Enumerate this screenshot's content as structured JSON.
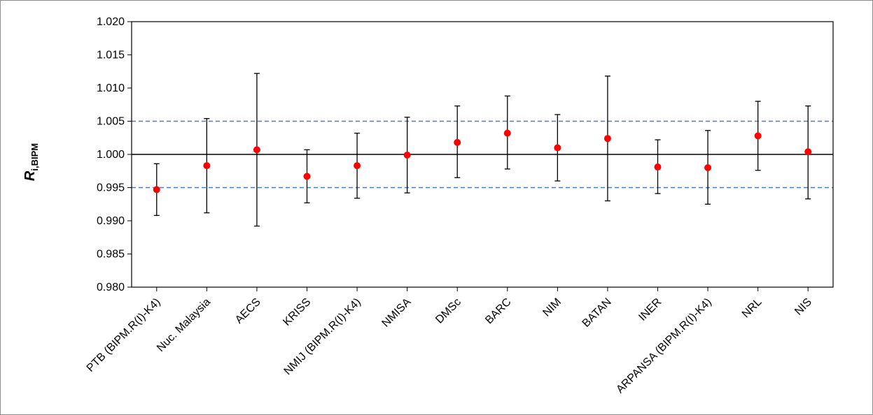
{
  "chart_data": {
    "type": "scatter",
    "ylabel": {
      "main": "R",
      "subscript": "i,BIPM"
    },
    "ylim": [
      0.98,
      1.02
    ],
    "ytick_step": 0.005,
    "ytick_labels": [
      "0.980",
      "0.985",
      "0.990",
      "0.995",
      "1.000",
      "1.005",
      "1.010",
      "1.015",
      "1.020"
    ],
    "reference_line": 1.0,
    "dashed_lines": [
      0.995,
      1.005
    ],
    "marker_color": "#ff0000",
    "dashed_color": "#4a7ebb",
    "categories": [
      "PTB (BIPM.R(I)-K4)",
      "Nuc. Malaysia",
      "AECS",
      "KRISS",
      "NMIJ (BIPM.R(I)-K4)",
      "NMISA",
      "DMSc",
      "BARC",
      "NIM",
      "BATAN",
      "INER",
      "ARPANSA (BIPM.R(I)-K4)",
      "NRL",
      "NIS"
    ],
    "values": [
      0.9947,
      0.9983,
      1.0007,
      0.9967,
      0.9983,
      0.9999,
      1.0018,
      1.0032,
      1.001,
      1.0024,
      0.9981,
      0.998,
      1.0028,
      1.0004
    ],
    "err_low": [
      0.9908,
      0.9912,
      0.9892,
      0.9927,
      0.9934,
      0.9942,
      0.9965,
      0.9978,
      0.996,
      0.993,
      0.9941,
      0.9925,
      0.9976,
      0.9933
    ],
    "err_high": [
      0.9986,
      1.0054,
      1.0122,
      1.0007,
      1.0032,
      1.0056,
      1.0073,
      1.0088,
      1.006,
      1.0118,
      1.0022,
      1.0036,
      1.008,
      1.0073
    ]
  }
}
